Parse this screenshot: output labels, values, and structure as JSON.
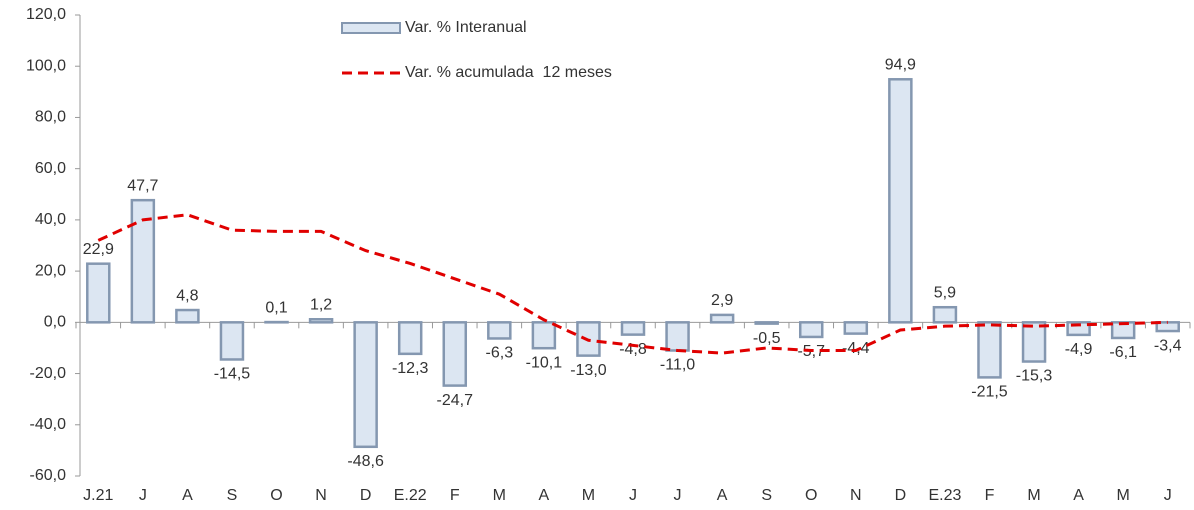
{
  "chart_data": {
    "type": "bar",
    "categories": [
      "J.21",
      "J",
      "A",
      "S",
      "O",
      "N",
      "D",
      "E.22",
      "F",
      "M",
      "A",
      "M",
      "J",
      "J",
      "A",
      "S",
      "O",
      "N",
      "D",
      "E.23",
      "F",
      "M",
      "A",
      "M",
      "J"
    ],
    "series": [
      {
        "name": "Var. % Interanual",
        "type": "bar",
        "color": "#dce6f2",
        "stroke": "#8497b0",
        "values": [
          22.9,
          47.7,
          4.8,
          -14.5,
          0.1,
          1.2,
          -48.6,
          -12.3,
          -24.7,
          -6.3,
          -10.1,
          -13.0,
          -4.8,
          -11.0,
          2.9,
          -0.5,
          -5.7,
          -4.4,
          94.9,
          5.9,
          -21.5,
          -15.3,
          -4.9,
          -6.1,
          -3.4
        ],
        "value_labels": [
          "22,9",
          "47,7",
          "4,8",
          "-14,5",
          "0,1",
          "1,2",
          "-48,6",
          "-12,3",
          "-24,7",
          "-6,3",
          "-10,1",
          "-13,0",
          "-4,8",
          "-11,0",
          "2,9",
          "-0,5",
          "-5,7",
          "-4,4",
          "94,9",
          "5,9",
          "-21,5",
          "-15,3",
          "-4,9",
          "-6,1",
          "-3,4"
        ]
      },
      {
        "name": "Var. % acumulada  12 meses",
        "type": "line",
        "color": "#e00000",
        "values": [
          32,
          40,
          42,
          36,
          35.5,
          35.5,
          28,
          23,
          17,
          11,
          1,
          -7,
          -9,
          -11,
          -12,
          -10,
          -11,
          -11,
          -3,
          -1.5,
          -1,
          -1.5,
          -1,
          -0.5,
          0
        ]
      }
    ],
    "ylim": [
      -60,
      120
    ],
    "yticks": [
      {
        "value": -60,
        "label": "-60,0"
      },
      {
        "value": -40,
        "label": "-40,0"
      },
      {
        "value": -20,
        "label": "-20,0"
      },
      {
        "value": 0,
        "label": "0,0"
      },
      {
        "value": 20,
        "label": "20,0"
      },
      {
        "value": 40,
        "label": "40,0"
      },
      {
        "value": 60,
        "label": "60,0"
      },
      {
        "value": 80,
        "label": "80,0"
      },
      {
        "value": 100,
        "label": "100,0"
      },
      {
        "value": 120,
        "label": "120,0"
      }
    ]
  }
}
